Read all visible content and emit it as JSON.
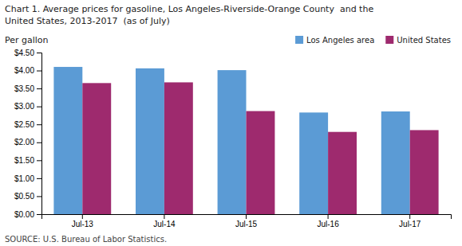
{
  "chart_data": {
    "type": "bar",
    "title": "Chart 1. Average prices for gasoline, Los Angeles-Riverside-Orange County  and the\nUnited States, 2013-2017  (as of July)",
    "y_label": "Per gallon",
    "annotations": [
      "SOURCE: U.S. Bureau of Labor Statistics."
    ],
    "categories": [
      "Jul-13",
      "Jul-14",
      "Jul-15",
      "Jul-16",
      "Jul-17"
    ],
    "series": [
      {
        "name": "Los Angeles area",
        "color": "#5B9BD5",
        "values": [
          4.1,
          4.06,
          4.01,
          2.83,
          2.86
        ]
      },
      {
        "name": "United States",
        "color": "#9E2A6E",
        "values": [
          3.65,
          3.67,
          2.87,
          2.29,
          2.34
        ]
      }
    ],
    "ylim": [
      0,
      4.5
    ],
    "yticks": [
      {
        "value": 0.0,
        "label": "$0.00"
      },
      {
        "value": 0.5,
        "label": "$0.50"
      },
      {
        "value": 1.0,
        "label": "$1.00"
      },
      {
        "value": 1.5,
        "label": "$1.50"
      },
      {
        "value": 2.0,
        "label": "$2.00"
      },
      {
        "value": 2.5,
        "label": "$2.50"
      },
      {
        "value": 3.0,
        "label": "$3.00"
      },
      {
        "value": 3.5,
        "label": "$3.50"
      },
      {
        "value": 4.0,
        "label": "$4.00"
      },
      {
        "value": 4.5,
        "label": "$4.50"
      }
    ],
    "grid": false,
    "legend": "upper right"
  }
}
